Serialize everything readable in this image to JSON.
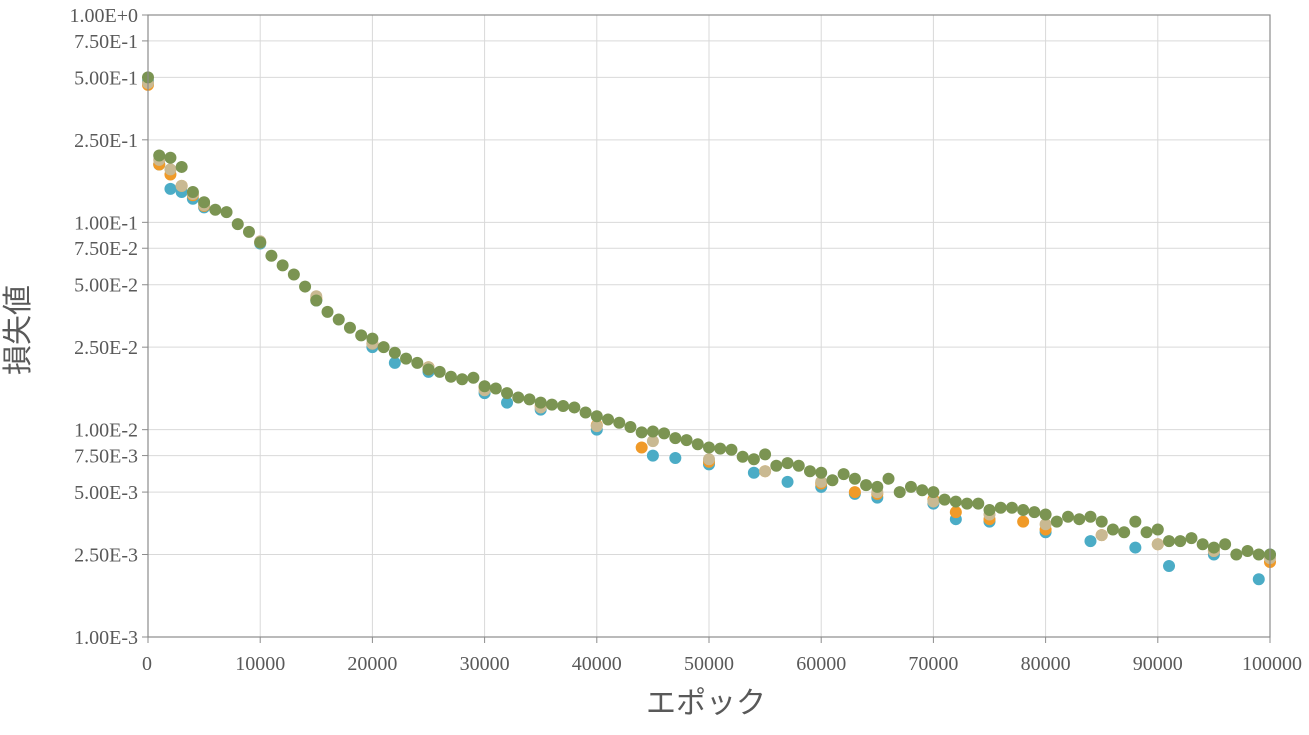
{
  "chart_data": {
    "type": "scatter",
    "title": "",
    "xlabel": "エポック",
    "ylabel": "損失値",
    "xlim": [
      0,
      100000
    ],
    "ylim": [
      0.001,
      1.0
    ],
    "y_scale": "log",
    "grid": true,
    "x_tick_values": [
      0,
      10000,
      20000,
      30000,
      40000,
      50000,
      60000,
      70000,
      80000,
      90000,
      100000
    ],
    "x_tick_labels": [
      "0",
      "10000",
      "20000",
      "30000",
      "40000",
      "50000",
      "60000",
      "70000",
      "80000",
      "90000",
      "100000"
    ],
    "y_tick_values": [
      1.0,
      0.75,
      0.5,
      0.25,
      0.1,
      0.075,
      0.05,
      0.025,
      0.01,
      0.0075,
      0.005,
      0.0025,
      0.001
    ],
    "y_tick_labels": [
      "1.00E+0",
      "7.50E-1",
      "5.00E-1",
      "2.50E-1",
      "1.00E-1",
      "7.50E-2",
      "5.00E-2",
      "2.50E-2",
      "1.00E-2",
      "7.50E-3",
      "5.00E-3",
      "2.50E-3",
      "1.00E-3"
    ],
    "series": [
      {
        "color": "#4bacc6",
        "x": [
          0,
          1000,
          2000,
          3000,
          4000,
          5000,
          10000,
          15000,
          20000,
          22000,
          25000,
          30000,
          32000,
          35000,
          40000,
          45000,
          47000,
          50000,
          54000,
          57000,
          60000,
          63000,
          65000,
          70000,
          72000,
          75000,
          80000,
          84000,
          88000,
          91000,
          95000,
          99000,
          100000
        ],
        "y": [
          0.48,
          0.19,
          0.145,
          0.14,
          0.13,
          0.118,
          0.079,
          0.042,
          0.025,
          0.021,
          0.019,
          0.015,
          0.0135,
          0.0125,
          0.01,
          0.0075,
          0.0073,
          0.0068,
          0.0062,
          0.0056,
          0.0053,
          0.0049,
          0.0047,
          0.0044,
          0.0037,
          0.0036,
          0.0032,
          0.0029,
          0.0027,
          0.0022,
          0.0025,
          0.0019,
          0.0025
        ]
      },
      {
        "color": "#f09a28",
        "x": [
          0,
          1000,
          2000,
          3000,
          4000,
          5000,
          10000,
          15000,
          20000,
          25000,
          30000,
          35000,
          40000,
          44000,
          50000,
          55000,
          60000,
          63000,
          65000,
          70000,
          72000,
          75000,
          78000,
          80000,
          85000,
          90000,
          95000,
          100000
        ],
        "y": [
          0.46,
          0.19,
          0.17,
          0.15,
          0.135,
          0.12,
          0.08,
          0.043,
          0.026,
          0.02,
          0.016,
          0.013,
          0.0105,
          0.0082,
          0.007,
          0.0063,
          0.0055,
          0.005,
          0.0049,
          0.0046,
          0.004,
          0.0037,
          0.0036,
          0.0033,
          0.0031,
          0.0028,
          0.0026,
          0.0023
        ]
      },
      {
        "color": "#c9b992",
        "x": [
          0,
          1000,
          2000,
          3000,
          4000,
          5000,
          10000,
          15000,
          20000,
          25000,
          30000,
          35000,
          40000,
          45000,
          50000,
          55000,
          60000,
          65000,
          70000,
          75000,
          80000,
          85000,
          90000,
          95000,
          100000
        ],
        "y": [
          0.47,
          0.2,
          0.18,
          0.15,
          0.137,
          0.121,
          0.081,
          0.044,
          0.026,
          0.02,
          0.0155,
          0.0128,
          0.0104,
          0.0088,
          0.0072,
          0.0063,
          0.0056,
          0.005,
          0.0045,
          0.0039,
          0.0035,
          0.0031,
          0.0028,
          0.0026,
          0.0024
        ]
      },
      {
        "color": "#7b9452",
        "x": [
          0,
          1000,
          2000,
          3000,
          4000,
          5000,
          6000,
          7000,
          8000,
          9000,
          10000,
          11000,
          12000,
          13000,
          14000,
          15000,
          16000,
          17000,
          18000,
          19000,
          20000,
          21000,
          22000,
          23000,
          24000,
          25000,
          26000,
          27000,
          28000,
          29000,
          30000,
          31000,
          32000,
          33000,
          34000,
          35000,
          36000,
          37000,
          38000,
          39000,
          40000,
          41000,
          42000,
          43000,
          44000,
          45000,
          46000,
          47000,
          48000,
          49000,
          50000,
          51000,
          52000,
          53000,
          54000,
          55000,
          56000,
          57000,
          58000,
          59000,
          60000,
          61000,
          62000,
          63000,
          64000,
          65000,
          66000,
          67000,
          68000,
          69000,
          70000,
          71000,
          72000,
          73000,
          74000,
          75000,
          76000,
          77000,
          78000,
          79000,
          80000,
          81000,
          82000,
          83000,
          84000,
          85000,
          86000,
          87000,
          88000,
          89000,
          90000,
          91000,
          92000,
          93000,
          94000,
          95000,
          96000,
          97000,
          98000,
          99000,
          100000
        ],
        "y": [
          0.5,
          0.21,
          0.205,
          0.185,
          0.14,
          0.125,
          0.115,
          0.112,
          0.098,
          0.09,
          0.08,
          0.069,
          0.062,
          0.056,
          0.049,
          0.042,
          0.037,
          0.034,
          0.031,
          0.0285,
          0.0275,
          0.025,
          0.0235,
          0.022,
          0.021,
          0.0195,
          0.019,
          0.018,
          0.0175,
          0.0178,
          0.0162,
          0.0158,
          0.015,
          0.0143,
          0.014,
          0.0135,
          0.0132,
          0.013,
          0.0128,
          0.0121,
          0.0116,
          0.0112,
          0.0108,
          0.0103,
          0.0097,
          0.0098,
          0.0096,
          0.0091,
          0.0089,
          0.0085,
          0.0082,
          0.0081,
          0.008,
          0.0074,
          0.0072,
          0.0076,
          0.0067,
          0.0069,
          0.0067,
          0.0063,
          0.0062,
          0.0057,
          0.0061,
          0.0058,
          0.0054,
          0.0053,
          0.0058,
          0.005,
          0.0053,
          0.0051,
          0.005,
          0.0046,
          0.0045,
          0.0044,
          0.0044,
          0.0041,
          0.0042,
          0.0042,
          0.0041,
          0.004,
          0.0039,
          0.0036,
          0.0038,
          0.0037,
          0.0038,
          0.0036,
          0.0033,
          0.0032,
          0.0036,
          0.0032,
          0.0033,
          0.0029,
          0.0029,
          0.003,
          0.0028,
          0.0027,
          0.0028,
          0.0025,
          0.0026,
          0.0025,
          0.0025
        ]
      }
    ]
  }
}
